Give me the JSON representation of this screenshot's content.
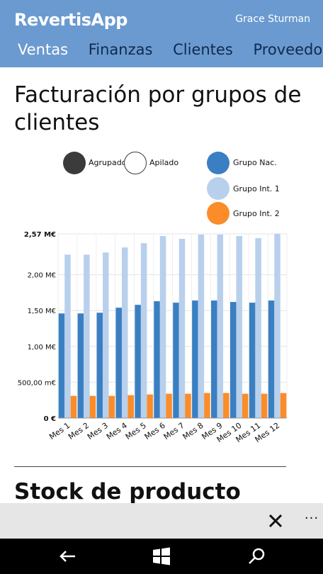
{
  "header": {
    "app_title": "RevertisApp",
    "user_name": "Grace Sturman",
    "tabs": [
      "Ventas",
      "Finanzas",
      "Clientes",
      "Proveedores"
    ],
    "active_tab": "Ventas"
  },
  "section": {
    "title": "Facturación por grupos de clientes"
  },
  "mode_legend": [
    {
      "label": "Agrupado",
      "state": "selected"
    },
    {
      "label": "Apilado",
      "state": "unselected"
    }
  ],
  "colors": {
    "header_bg": "#6a9ad0",
    "grupo_nac": "#3a7fc2",
    "grupo_int1": "#b8d0ec",
    "grupo_int2": "#fb8c2a",
    "mode_selected": "#3b3b3b"
  },
  "chart_data": {
    "type": "bar",
    "categories": [
      "Mes 1",
      "Mes 2",
      "Mes 3",
      "Mes 4",
      "Mes 5",
      "Mes 6",
      "Mes 7",
      "Mes 8",
      "Mes 9",
      "Mes 10",
      "Mes 11",
      "Mes 12"
    ],
    "series": [
      {
        "name": "Grupo Nac.",
        "values": [
          1.46,
          1.46,
          1.47,
          1.54,
          1.58,
          1.63,
          1.61,
          1.64,
          1.64,
          1.62,
          1.61,
          1.64
        ]
      },
      {
        "name": "Grupo Int. 1",
        "values": [
          2.28,
          2.28,
          2.31,
          2.38,
          2.44,
          2.54,
          2.5,
          2.56,
          2.56,
          2.54,
          2.51,
          2.57
        ]
      },
      {
        "name": "Grupo Int. 2",
        "values": [
          0.31,
          0.31,
          0.31,
          0.32,
          0.33,
          0.34,
          0.34,
          0.35,
          0.35,
          0.34,
          0.34,
          0.35
        ]
      }
    ],
    "y_ticks": [
      {
        "value": 0,
        "label": "0 €"
      },
      {
        "value": 0.5,
        "label": "500,00 m€"
      },
      {
        "value": 1.0,
        "label": "1,00 M€"
      },
      {
        "value": 1.5,
        "label": "1,50 M€"
      },
      {
        "value": 2.0,
        "label": "2,00 M€"
      },
      {
        "value": 2.57,
        "label": "2,57 M€"
      }
    ],
    "ylim": [
      0,
      2.57
    ],
    "grid": true,
    "legend": "top-right",
    "title": "",
    "xlabel": "",
    "ylabel": ""
  },
  "section2": {
    "title": "Stock de producto"
  },
  "appbar": {
    "close_icon": "close-icon",
    "more_label": "···"
  },
  "navbar": {
    "icons": [
      "back-icon",
      "windows-start-icon",
      "search-icon"
    ]
  }
}
